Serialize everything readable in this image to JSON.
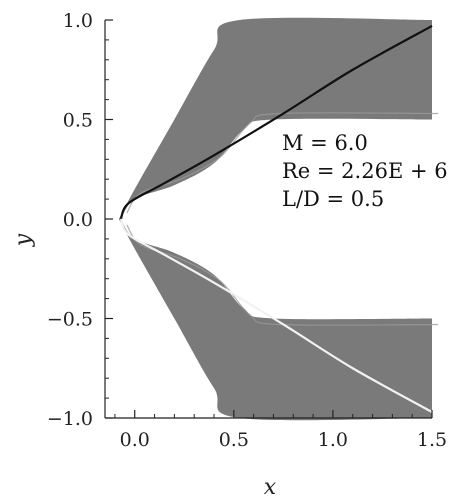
{
  "chart_data": {
    "type": "contour_field",
    "xlabel": "x",
    "ylabel": "y",
    "xlim": [
      -0.15,
      1.5
    ],
    "ylim": [
      -1.0,
      1.0
    ],
    "xticks": [
      {
        "value": 0.0,
        "label": "0.0"
      },
      {
        "value": 0.5,
        "label": "0.5"
      },
      {
        "value": 1.0,
        "label": "1.0"
      },
      {
        "value": 1.5,
        "label": "1.5"
      }
    ],
    "yticks": [
      {
        "value": 1.0,
        "label": "1.0"
      },
      {
        "value": 0.5,
        "label": "0.5"
      },
      {
        "value": 0.0,
        "label": "0.0"
      },
      {
        "value": -0.5,
        "label": "−0.5"
      },
      {
        "value": -1.0,
        "label": "−1.0"
      }
    ],
    "annotations": [
      "M = 6.0",
      "Re = 2.26E + 6",
      "L/D = 0.5"
    ],
    "body": {
      "nose_x": -0.07,
      "half_height": 0.05,
      "end_x": 1.5
    },
    "bow_shock": [
      {
        "x": -0.07,
        "y": 0.0
      },
      {
        "x": -0.03,
        "y": 0.08
      },
      {
        "x": 0.15,
        "y": 0.18
      },
      {
        "x": 0.4,
        "y": 0.32
      },
      {
        "x": 0.75,
        "y": 0.53
      },
      {
        "x": 1.1,
        "y": 0.75
      },
      {
        "x": 1.5,
        "y": 0.97
      }
    ],
    "outer_boundary": [
      {
        "x": -0.08,
        "y": 0.0
      },
      {
        "x": 0.0,
        "y": 0.15
      },
      {
        "x": 0.2,
        "y": 0.5
      },
      {
        "x": 0.4,
        "y": 0.85
      },
      {
        "x": 0.53,
        "y": 1.0
      },
      {
        "x": 1.5,
        "y": 1.0
      }
    ],
    "inner_boundary": [
      {
        "x": -0.07,
        "y": 0.0
      },
      {
        "x": 0.0,
        "y": 0.1
      },
      {
        "x": 0.2,
        "y": 0.17
      },
      {
        "x": 0.4,
        "y": 0.28
      },
      {
        "x": 0.55,
        "y": 0.45
      },
      {
        "x": 0.7,
        "y": 0.5
      },
      {
        "x": 1.5,
        "y": 0.5
      }
    ],
    "colors": {
      "field": "#7a7a7a",
      "shock_upper": "#111111",
      "shock_lower": "#f2f2f2",
      "axis": "#222222"
    }
  }
}
